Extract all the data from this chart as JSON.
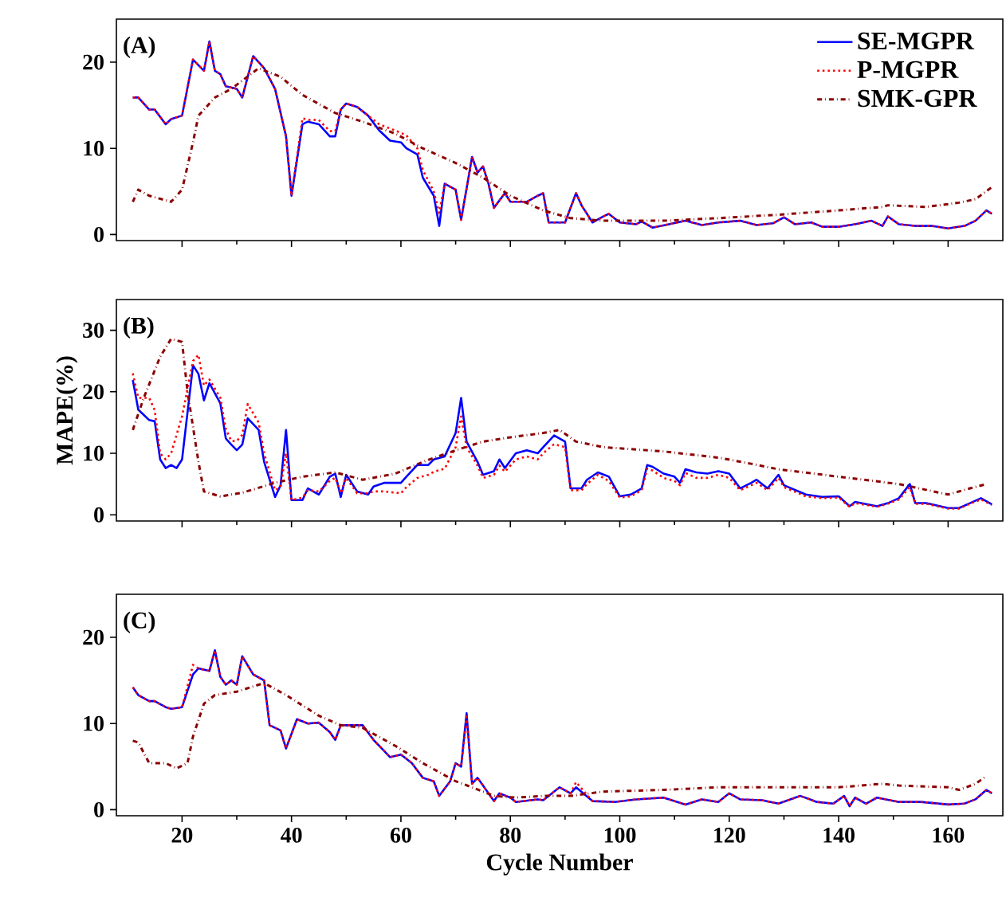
{
  "chart_data": [
    {
      "type": "line",
      "annotations": [
        "(A)"
      ],
      "xlim": [
        8,
        170
      ],
      "ylim": [
        -0.7,
        25
      ],
      "xticks": [
        20,
        40,
        60,
        80,
        100,
        120,
        140,
        160
      ],
      "yticks": [
        0,
        10,
        20
      ],
      "tick_labels": "y",
      "legend": "top right",
      "series": [
        {
          "name": "SE-MGPR",
          "color": "#0000ff",
          "line_style": "solid",
          "x": [
            11,
            12,
            14,
            15,
            17,
            18,
            20,
            22,
            24,
            25,
            26,
            27,
            28,
            30,
            31,
            33,
            35,
            37,
            39,
            40,
            42,
            43,
            45,
            47,
            48,
            49,
            50,
            52,
            54,
            56,
            58,
            60,
            61,
            63,
            64,
            66,
            67,
            68,
            70,
            71,
            73,
            74,
            75,
            76,
            77,
            79,
            80,
            83,
            85,
            86,
            87,
            90,
            92,
            93,
            95,
            97,
            98,
            100,
            103,
            104,
            106,
            109,
            112,
            115,
            118,
            122,
            125,
            128,
            130,
            132,
            135,
            137,
            140,
            143,
            146,
            148,
            149,
            151,
            154,
            157,
            160,
            163,
            165,
            167,
            168
          ],
          "values": [
            15.9,
            15.9,
            14.5,
            14.5,
            12.8,
            13.4,
            13.8,
            20.3,
            19,
            22.4,
            19,
            18.6,
            17.2,
            16.9,
            15.9,
            20.7,
            19.3,
            16.9,
            11.4,
            4.5,
            12.8,
            13.1,
            12.8,
            11.4,
            11.4,
            14.5,
            15.2,
            14.8,
            13.8,
            12.1,
            10.9,
            10.7,
            10,
            9.3,
            6.6,
            4.5,
            1,
            5.9,
            5.2,
            1.7,
            9,
            7.2,
            7.9,
            5.9,
            3.1,
            4.8,
            3.8,
            3.8,
            4.5,
            4.8,
            1.4,
            1.4,
            4.8,
            3.4,
            1.4,
            2.1,
            2.4,
            1.4,
            1.2,
            1.5,
            0.8,
            1.2,
            1.6,
            1.1,
            1.4,
            1.6,
            1.1,
            1.3,
            2,
            1.2,
            1.4,
            0.9,
            0.9,
            1.2,
            1.6,
            1,
            2.1,
            1.2,
            1,
            1,
            0.7,
            1,
            1.6,
            2.8,
            2.4
          ]
        },
        {
          "name": "P-MGPR",
          "color": "#ff0000",
          "line_style": "dotted",
          "x": [
            11,
            12,
            14,
            15,
            17,
            18,
            20,
            22,
            24,
            25,
            26,
            27,
            28,
            30,
            31,
            33,
            35,
            37,
            39,
            40,
            42,
            43,
            45,
            47,
            48,
            49,
            50,
            52,
            54,
            56,
            58,
            60,
            61,
            63,
            64,
            66,
            67,
            68,
            70,
            71,
            73,
            74,
            75,
            76,
            77,
            79,
            80,
            83,
            85,
            86,
            87,
            90,
            92,
            93,
            95,
            97,
            98,
            100,
            103,
            104,
            106,
            109,
            112,
            115,
            118,
            122,
            125,
            128,
            130,
            132,
            135,
            137,
            140,
            143,
            146,
            148,
            149,
            151,
            154,
            157,
            160,
            163,
            165,
            167,
            168
          ],
          "values": [
            15.9,
            15.9,
            14.5,
            14.5,
            12.8,
            13.4,
            13.8,
            20.3,
            19,
            22.4,
            19,
            18.6,
            17.2,
            16.9,
            15.9,
            20.7,
            19.3,
            16.9,
            11.4,
            4.5,
            13.5,
            13.3,
            13.3,
            12,
            12,
            14.5,
            15.2,
            14.8,
            13.8,
            12.8,
            12.3,
            11.8,
            11.5,
            10,
            7.5,
            5,
            2.5,
            5.9,
            5.2,
            1.7,
            9,
            7.2,
            7.9,
            5.9,
            3.1,
            4.8,
            3.8,
            3.8,
            4.5,
            4.8,
            1.4,
            1.4,
            4.8,
            3.4,
            1.4,
            2.1,
            2.4,
            1.4,
            1.2,
            1.5,
            0.8,
            1.2,
            1.6,
            1.1,
            1.4,
            1.6,
            1.1,
            1.3,
            2,
            1.2,
            1.4,
            0.9,
            0.9,
            1.2,
            1.6,
            1,
            2.1,
            1.2,
            1,
            1,
            0.7,
            1,
            1.6,
            2.8,
            2.4
          ]
        },
        {
          "name": "SMK-GPR",
          "color": "#8b0000",
          "line_style": "dashdot",
          "x": [
            11,
            12,
            14,
            18,
            20,
            22,
            23,
            26,
            29,
            34,
            38,
            42,
            48,
            53,
            59,
            64,
            70,
            75,
            80,
            86,
            91,
            97,
            108,
            118,
            129,
            140,
            148,
            149,
            156,
            162,
            165,
            168
          ],
          "values": [
            3.8,
            5.2,
            4.5,
            3.8,
            5.2,
            10.7,
            13.8,
            15.9,
            16.9,
            19.3,
            18.3,
            16.2,
            14.1,
            13.1,
            11.7,
            10,
            8.3,
            6.6,
            4.5,
            2.8,
            1.9,
            1.6,
            1.6,
            1.9,
            2.3,
            2.8,
            3.2,
            3.4,
            3.2,
            3.7,
            4.1,
            5.5
          ]
        }
      ]
    },
    {
      "type": "line",
      "annotations": [
        "(B)"
      ],
      "ylabel": "MAPE(%)",
      "xlim": [
        8,
        170
      ],
      "ylim": [
        -1,
        35
      ],
      "xticks": [
        20,
        40,
        60,
        80,
        100,
        120,
        140,
        160
      ],
      "yticks": [
        0,
        10,
        20,
        30
      ],
      "tick_labels": "y",
      "series": [
        {
          "color": "#0000ff",
          "line_style": "solid",
          "x": [
            11,
            12,
            14,
            15,
            16,
            17,
            18,
            19,
            20,
            22,
            23,
            24,
            25,
            27,
            28,
            29,
            30,
            31,
            32,
            34,
            35,
            37,
            38,
            39,
            40,
            42,
            43,
            45,
            47,
            48,
            49,
            50,
            52,
            54,
            55,
            57,
            60,
            61,
            63,
            65,
            66,
            68,
            70,
            71,
            72,
            74,
            75,
            77,
            78,
            79,
            81,
            83,
            85,
            86,
            88,
            90,
            91,
            93,
            94,
            96,
            98,
            100,
            102,
            104,
            105,
            106,
            108,
            110,
            111,
            112,
            114,
            116,
            118,
            120,
            122,
            124,
            125,
            127,
            129,
            130,
            134,
            137,
            140,
            142,
            143,
            147,
            149,
            151,
            153,
            154,
            156,
            160,
            162,
            164,
            166,
            168
          ],
          "values": [
            21.9,
            17.1,
            15.4,
            15.2,
            9,
            7.6,
            8.1,
            7.6,
            9,
            24.3,
            22.9,
            18.6,
            21.4,
            18.1,
            12.4,
            11.4,
            10.5,
            11.4,
            15.7,
            13.8,
            8.6,
            2.9,
            4.8,
            13.8,
            2.4,
            2.4,
            4.3,
            3.3,
            6.2,
            6.7,
            2.9,
            6.5,
            3.8,
            3.3,
            4.6,
            5.2,
            5.2,
            6.2,
            8.1,
            8.1,
            9,
            9.5,
            13.3,
            19,
            11.9,
            8.6,
            6.5,
            7.1,
            9,
            7.6,
            10,
            10.5,
            10,
            11,
            12.9,
            11.9,
            4.3,
            4.3,
            5.7,
            6.9,
            6.2,
            3,
            3.3,
            4.3,
            8.1,
            7.8,
            6.7,
            6.2,
            5.2,
            7.4,
            6.9,
            6.7,
            7.1,
            6.7,
            4.3,
            5.2,
            5.7,
            4.3,
            6.5,
            4.8,
            3.3,
            2.9,
            3,
            1.4,
            2.1,
            1.4,
            1.9,
            2.7,
            5,
            1.9,
            1.9,
            1.1,
            1.1,
            1.9,
            2.7,
            1.7
          ]
        },
        {
          "color": "#ff0000",
          "line_style": "dotted",
          "x": [
            11,
            12,
            14,
            15,
            16,
            17,
            18,
            19,
            20,
            22,
            23,
            24,
            25,
            27,
            28,
            29,
            30,
            31,
            32,
            34,
            35,
            37,
            38,
            39,
            40,
            42,
            43,
            45,
            47,
            48,
            49,
            50,
            52,
            54,
            55,
            57,
            60,
            61,
            63,
            65,
            66,
            68,
            70,
            71,
            72,
            74,
            75,
            77,
            78,
            79,
            81,
            83,
            85,
            86,
            88,
            90,
            91,
            93,
            94,
            96,
            98,
            100,
            102,
            104,
            105,
            106,
            108,
            110,
            111,
            112,
            114,
            116,
            118,
            120,
            122,
            124,
            125,
            127,
            129,
            130,
            134,
            137,
            140,
            142,
            143,
            147,
            149,
            151,
            153,
            154,
            156,
            160,
            162,
            164,
            166,
            168
          ],
          "values": [
            23,
            19,
            19,
            17,
            10,
            9,
            10,
            13,
            16,
            25,
            26,
            21,
            22,
            19,
            14,
            12,
            12,
            13,
            18,
            15,
            10,
            4,
            4.5,
            10,
            2.4,
            2.8,
            4,
            3.8,
            5.5,
            6,
            3.5,
            6,
            3.5,
            3.5,
            3.8,
            3.8,
            3.5,
            4.5,
            6,
            6.5,
            7,
            7.5,
            11,
            16,
            11,
            8,
            6,
            6.5,
            8,
            7,
            9,
            9.5,
            9,
            10,
            11.5,
            11,
            4,
            4,
            5,
            6.5,
            5.5,
            2.8,
            3,
            4,
            7.5,
            7.2,
            6,
            5.5,
            4.8,
            6.8,
            6,
            6,
            6.5,
            6,
            4,
            4.8,
            5.2,
            4,
            6,
            4.5,
            3,
            2.7,
            2.8,
            1.3,
            1.9,
            1.3,
            1.8,
            2.5,
            4.5,
            1.8,
            1.8,
            1,
            1,
            1.8,
            2.5,
            1.6
          ]
        },
        {
          "color": "#8b0000",
          "line_style": "dashdot",
          "x": [
            11,
            13,
            16,
            18,
            20,
            21,
            23,
            24,
            27,
            31,
            37,
            42,
            48,
            53,
            59,
            64,
            70,
            75,
            80,
            86,
            89,
            92,
            97,
            108,
            118,
            124,
            129,
            140,
            151,
            160,
            164,
            167
          ],
          "values": [
            13.8,
            19,
            25.7,
            28.6,
            28.1,
            20,
            8.6,
            3.8,
            3,
            3.6,
            5.2,
            6.2,
            6.9,
            5.7,
            6.7,
            8.6,
            10.5,
            11.9,
            12.6,
            13.3,
            13.8,
            11.9,
            11,
            10.3,
            9.3,
            8.3,
            7.4,
            6.2,
            5,
            3.3,
            4.3,
            5
          ]
        }
      ]
    },
    {
      "type": "line",
      "annotations": [
        "(C)"
      ],
      "xlabel": "Cycle Number",
      "xlim": [
        8,
        170
      ],
      "ylim": [
        -0.7,
        25
      ],
      "xticks": [
        20,
        40,
        60,
        80,
        100,
        120,
        140,
        160
      ],
      "yticks": [
        0,
        10,
        20
      ],
      "series": [
        {
          "color": "#0000ff",
          "line_style": "solid",
          "x": [
            11,
            12,
            14,
            15,
            17,
            18,
            20,
            22,
            23,
            25,
            26,
            27,
            28,
            29,
            30,
            31,
            33,
            35,
            36,
            38,
            39,
            41,
            43,
            45,
            47,
            48,
            49,
            51,
            53,
            55,
            58,
            60,
            62,
            64,
            66,
            67,
            69,
            70,
            71,
            72,
            73,
            74,
            77,
            78,
            80,
            81,
            85,
            86,
            89,
            91,
            92,
            95,
            99,
            103,
            108,
            112,
            115,
            118,
            120,
            122,
            126,
            129,
            133,
            136,
            139,
            141,
            142,
            143,
            145,
            147,
            151,
            155,
            160,
            163,
            165,
            167,
            168
          ],
          "values": [
            14.2,
            13.3,
            12.6,
            12.6,
            11.9,
            11.7,
            11.9,
            15.7,
            16.4,
            16.1,
            18.5,
            15.4,
            14.5,
            15,
            14.5,
            17.8,
            15.7,
            15,
            9.8,
            9.2,
            7.1,
            10.5,
            10,
            10.1,
            9,
            8.1,
            9.8,
            9.8,
            9.8,
            8.1,
            6.1,
            6.4,
            5.4,
            3.7,
            3.3,
            1.6,
            3.3,
            5.4,
            5,
            11.2,
            3,
            3.7,
            1,
            1.9,
            1.4,
            0.9,
            1.2,
            1.1,
            2.6,
            1.9,
            2.6,
            1,
            0.9,
            1.2,
            1.4,
            0.6,
            1.2,
            0.9,
            1.9,
            1.2,
            1.1,
            0.7,
            1.6,
            0.9,
            0.7,
            1.6,
            0.4,
            1.4,
            0.7,
            1.4,
            0.9,
            0.9,
            0.6,
            0.7,
            1.2,
            2.3,
            1.9
          ]
        },
        {
          "color": "#ff0000",
          "line_style": "dotted",
          "x": [
            11,
            12,
            14,
            15,
            17,
            18,
            20,
            22,
            23,
            25,
            26,
            27,
            28,
            29,
            30,
            31,
            33,
            35,
            36,
            38,
            39,
            41,
            43,
            45,
            47,
            48,
            49,
            51,
            53,
            55,
            58,
            60,
            62,
            64,
            66,
            67,
            69,
            70,
            71,
            72,
            73,
            74,
            77,
            78,
            80,
            81,
            85,
            86,
            89,
            91,
            92,
            95,
            99,
            103,
            108,
            112,
            115,
            118,
            120,
            122,
            126,
            129,
            133,
            136,
            139,
            141,
            142,
            143,
            145,
            147,
            151,
            155,
            160,
            163,
            165,
            167,
            168
          ],
          "values": [
            14.2,
            13.3,
            12.6,
            12.6,
            11.9,
            11.7,
            11.9,
            16.8,
            16.4,
            16.1,
            18.5,
            15.4,
            14.5,
            15,
            14.5,
            17.8,
            15.7,
            15,
            9.8,
            9.2,
            7.1,
            10.5,
            10,
            10.1,
            9,
            8.1,
            9.8,
            9.8,
            9.8,
            8.1,
            6.1,
            6.4,
            5.4,
            3.7,
            3.3,
            1.6,
            3.3,
            5.4,
            5,
            10.8,
            3,
            3.7,
            1,
            1.9,
            1.4,
            0.9,
            1.2,
            1.1,
            2.6,
            1.9,
            3.2,
            1,
            0.9,
            1.2,
            1.4,
            0.6,
            1.2,
            0.9,
            1.9,
            1.2,
            1.1,
            0.7,
            1.6,
            0.9,
            0.7,
            1.6,
            0.4,
            1.4,
            0.7,
            1.4,
            0.9,
            0.9,
            0.6,
            0.7,
            1.2,
            2.3,
            1.9
          ]
        },
        {
          "color": "#8b0000",
          "line_style": "dashdot",
          "x": [
            11,
            12,
            14,
            17,
            19,
            21,
            22,
            24,
            26,
            30,
            35,
            39,
            45,
            49,
            53,
            59,
            64,
            70,
            73,
            77,
            81,
            86,
            91,
            97,
            108,
            118,
            129,
            140,
            148,
            151,
            160,
            162,
            165,
            167
          ],
          "values": [
            8,
            7.8,
            5.4,
            5.4,
            4.8,
            5.4,
            8.5,
            12.3,
            13.3,
            13.7,
            14.7,
            13.3,
            10.9,
            9.8,
            9.5,
            7.4,
            5.4,
            3.3,
            2.6,
            1.6,
            1.4,
            1.6,
            1.6,
            2.1,
            2.3,
            2.6,
            2.6,
            2.6,
            3,
            2.8,
            2.6,
            2.3,
            3,
            3.9
          ]
        }
      ]
    }
  ]
}
